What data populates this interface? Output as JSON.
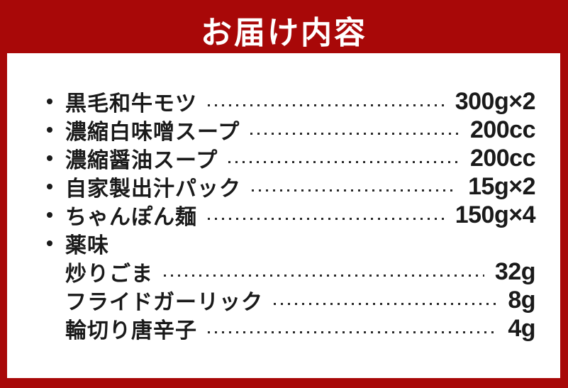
{
  "theme": {
    "accent_red": "#a80808",
    "text_color": "#1a1a1a",
    "background": "#ffffff",
    "header_text_color": "#ffffff"
  },
  "header": {
    "title": "お届け内容"
  },
  "contents_list": {
    "items": [
      {
        "label": "黒毛和牛モツ",
        "value": "300g×2",
        "bullet": true,
        "indent": false
      },
      {
        "label": "濃縮白味噌スープ",
        "value": "200cc",
        "bullet": true,
        "indent": false
      },
      {
        "label": "濃縮醤油スープ",
        "value": "200cc",
        "bullet": true,
        "indent": false
      },
      {
        "label": "自家製出汁パック",
        "value": "15g×2",
        "bullet": true,
        "indent": false
      },
      {
        "label": "ちゃんぽん麺",
        "value": "150g×4",
        "bullet": true,
        "indent": false
      },
      {
        "label": "薬味",
        "value": "",
        "bullet": true,
        "indent": false
      },
      {
        "label": "炒りごま",
        "value": "32g",
        "bullet": false,
        "indent": true
      },
      {
        "label": "フライドガーリック",
        "value": "8g",
        "bullet": false,
        "indent": true
      },
      {
        "label": "輪切り唐辛子",
        "value": "4g",
        "bullet": false,
        "indent": true
      }
    ]
  }
}
